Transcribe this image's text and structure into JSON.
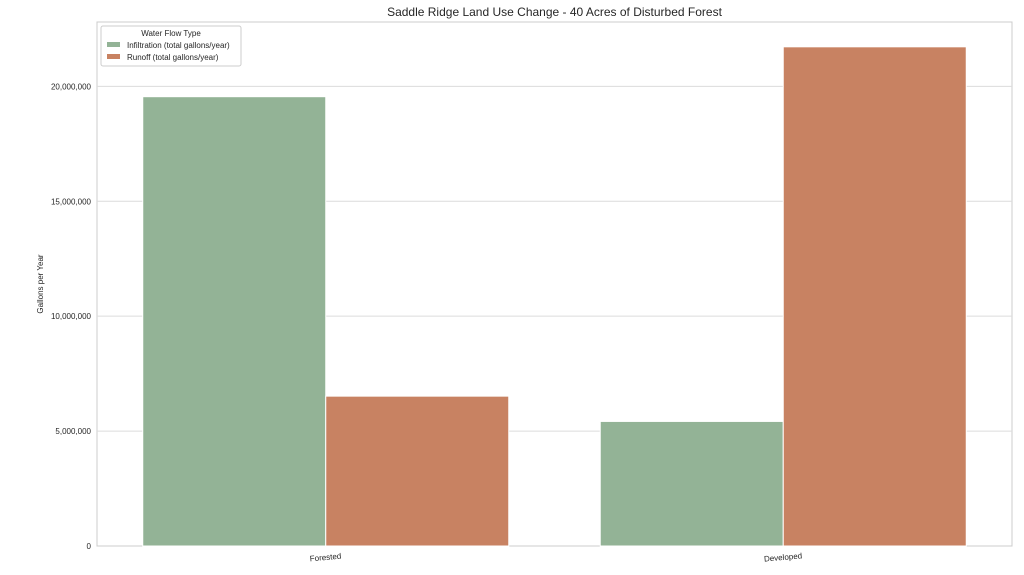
{
  "chart_data": {
    "type": "bar",
    "title": "Saddle Ridge Land Use Change - 40 Acres of Disturbed Forest",
    "xlabel": "",
    "ylabel": "Gallons per Year",
    "categories": [
      "Forested",
      "Developed"
    ],
    "series": [
      {
        "name": "Infiltration (total gallons/year)",
        "values": [
          19550000,
          5420000
        ],
        "color": "#93b396"
      },
      {
        "name": "Runoff (total gallons/year)",
        "values": [
          6520000,
          21720000
        ],
        "color": "#c88262"
      }
    ],
    "ylim": [
      0,
      22800000
    ],
    "yticks": [
      0,
      5000000,
      10000000,
      15000000,
      20000000
    ],
    "ytick_labels": [
      "0",
      "5,000,000",
      "10,000,000",
      "15,000,000",
      "20,000,000"
    ],
    "legend": {
      "title": "Water Flow Type",
      "placement": "top-left"
    },
    "grid": true
  }
}
